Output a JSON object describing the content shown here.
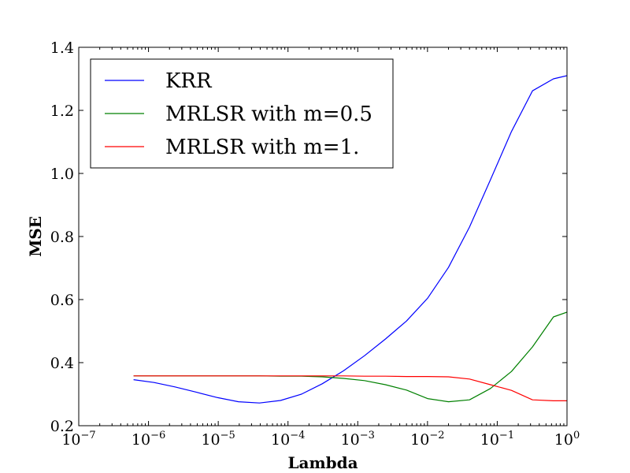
{
  "chart_data": {
    "type": "line",
    "title": "",
    "xlabel": "Lambda",
    "ylabel": "MSE",
    "xscale": "log",
    "xlim": [
      1e-07,
      1
    ],
    "ylim": [
      0.2,
      1.4
    ],
    "grid": false,
    "legend_position": "top-left",
    "x_ticks": [
      {
        "value": 1e-07,
        "base": "10",
        "exp": "−7"
      },
      {
        "value": 1e-06,
        "base": "10",
        "exp": "−6"
      },
      {
        "value": 1e-05,
        "base": "10",
        "exp": "−5"
      },
      {
        "value": 0.0001,
        "base": "10",
        "exp": "−4"
      },
      {
        "value": 0.001,
        "base": "10",
        "exp": "−3"
      },
      {
        "value": 0.01,
        "base": "10",
        "exp": "−2"
      },
      {
        "value": 0.1,
        "base": "10",
        "exp": "−1"
      },
      {
        "value": 1,
        "base": "10",
        "exp": "0"
      }
    ],
    "y_ticks": [
      {
        "value": 0.2,
        "label": "0.2"
      },
      {
        "value": 0.4,
        "label": "0.4"
      },
      {
        "value": 0.6,
        "label": "0.6"
      },
      {
        "value": 0.8,
        "label": "0.8"
      },
      {
        "value": 1.0,
        "label": "1.0"
      },
      {
        "value": 1.2,
        "label": "1.2"
      },
      {
        "value": 1.4,
        "label": "1.4"
      }
    ],
    "x": [
      6.1e-07,
      1.2e-06,
      2.4e-06,
      4.9e-06,
      9.8e-06,
      1.95e-05,
      3.9e-05,
      7.8e-05,
      0.000156,
      0.00031,
      0.000625,
      0.00125,
      0.0025,
      0.005,
      0.01,
      0.02,
      0.04,
      0.08,
      0.16,
      0.32,
      0.64,
      1
    ],
    "series": [
      {
        "name": "KRR",
        "color": "#0000ff",
        "values": [
          0.346,
          0.337,
          0.323,
          0.306,
          0.289,
          0.276,
          0.272,
          0.28,
          0.3,
          0.333,
          0.374,
          0.422,
          0.475,
          0.532,
          0.604,
          0.702,
          0.83,
          0.98,
          1.133,
          1.262,
          1.3,
          1.31
        ]
      },
      {
        "name": "MRLSR with m=0.5",
        "color": "#008000",
        "values": [
          0.358,
          0.358,
          0.358,
          0.358,
          0.358,
          0.358,
          0.358,
          0.357,
          0.357,
          0.355,
          0.35,
          0.343,
          0.33,
          0.313,
          0.286,
          0.276,
          0.282,
          0.318,
          0.372,
          0.45,
          0.545,
          0.56
        ]
      },
      {
        "name": "MRLSR with m=1.",
        "color": "#ff0000",
        "values": [
          0.358,
          0.358,
          0.358,
          0.358,
          0.358,
          0.358,
          0.358,
          0.358,
          0.358,
          0.358,
          0.358,
          0.357,
          0.357,
          0.356,
          0.356,
          0.355,
          0.348,
          0.33,
          0.312,
          0.282,
          0.279,
          0.279
        ]
      }
    ]
  }
}
